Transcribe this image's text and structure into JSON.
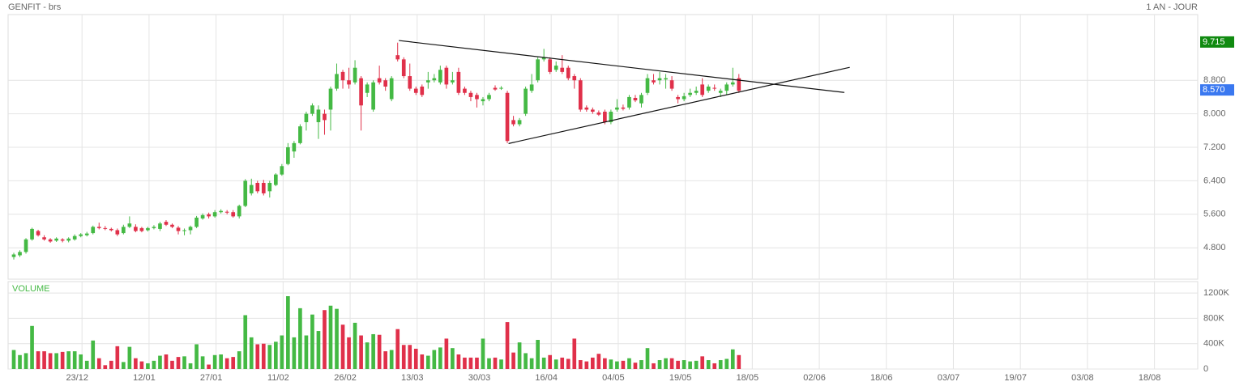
{
  "chart_data": {
    "type": "candlestick",
    "title": "GENFIT - brs",
    "period": "1 AN - JOUR",
    "up_color": "#44b944",
    "down_color": "#e0304a",
    "x": [
      0,
      1,
      2,
      3,
      4,
      5,
      6,
      7,
      8,
      9,
      10,
      11,
      12,
      13,
      14,
      15,
      16,
      17,
      18,
      19,
      20,
      21,
      22,
      23,
      24,
      25,
      26,
      27,
      28,
      29,
      30,
      31,
      32,
      33,
      34,
      35,
      36,
      37,
      38,
      39,
      40,
      41,
      42,
      43,
      44,
      45,
      46,
      47,
      48,
      49,
      50,
      51,
      52,
      53,
      54,
      55,
      56,
      57,
      58,
      59,
      60,
      61,
      62,
      63,
      64,
      65,
      66,
      67,
      68,
      69,
      70,
      71,
      72,
      73,
      74,
      75,
      76,
      77,
      78,
      79,
      80,
      81,
      82,
      83,
      84,
      85,
      86,
      87,
      88,
      89,
      90,
      91,
      92,
      93,
      94,
      95,
      96,
      97,
      98,
      99,
      100,
      101,
      102,
      103,
      104,
      105,
      106,
      107,
      108,
      109,
      110,
      111,
      112,
      113,
      114,
      115,
      116,
      117,
      118,
      119
    ],
    "open": [
      4.58,
      4.62,
      4.7,
      5.0,
      5.2,
      5.05,
      5.0,
      4.97,
      5.0,
      4.97,
      5.0,
      5.08,
      5.1,
      5.15,
      5.3,
      5.27,
      5.25,
      5.22,
      5.15,
      5.3,
      5.3,
      5.27,
      5.22,
      5.27,
      5.25,
      5.42,
      5.35,
      5.28,
      5.2,
      5.22,
      5.3,
      5.5,
      5.6,
      5.55,
      5.65,
      5.66,
      5.65,
      5.55,
      5.8,
      6.1,
      6.35,
      6.35,
      6.15,
      6.3,
      6.55,
      6.8,
      7.1,
      7.3,
      7.8,
      8.0,
      7.8,
      8.0,
      8.1,
      8.6,
      9.0,
      8.8,
      8.75,
      8.85,
      8.5,
      8.1,
      8.85,
      8.8,
      8.35,
      9.4,
      9.3,
      8.9,
      8.6,
      8.65,
      8.75,
      8.8,
      8.75,
      9.1,
      8.75,
      9.0,
      8.6,
      8.5,
      8.45,
      8.3,
      8.35,
      8.62,
      8.6,
      8.5,
      7.85,
      7.75,
      8.0,
      8.55,
      8.8,
      9.3,
      9.3,
      9.05,
      9.1,
      9.1,
      8.9,
      8.8,
      8.15,
      8.1,
      8.03,
      8.05,
      7.8,
      8.1,
      8.15,
      8.15,
      8.38,
      8.25,
      8.5,
      8.8,
      8.8,
      8.82,
      8.8,
      8.4,
      8.35,
      8.45,
      8.5,
      8.7,
      8.55,
      8.62,
      8.5,
      8.55,
      8.7,
      8.85
    ],
    "high": [
      4.68,
      4.74,
      5.03,
      5.28,
      5.23,
      5.1,
      5.03,
      5.05,
      5.03,
      5.05,
      5.12,
      5.15,
      5.18,
      5.33,
      5.4,
      5.32,
      5.28,
      5.26,
      5.35,
      5.55,
      5.36,
      5.3,
      5.3,
      5.34,
      5.42,
      5.46,
      5.38,
      5.32,
      5.26,
      5.33,
      5.56,
      5.62,
      5.64,
      5.7,
      5.72,
      5.7,
      5.7,
      5.83,
      6.44,
      6.45,
      6.4,
      6.42,
      6.4,
      6.58,
      6.8,
      7.3,
      7.35,
      7.75,
      8.05,
      8.25,
      8.2,
      8.1,
      8.65,
      9.2,
      9.05,
      9.1,
      9.28,
      8.9,
      8.75,
      8.8,
      9.15,
      8.85,
      8.9,
      9.7,
      9.35,
      9.2,
      8.65,
      8.7,
      9.0,
      8.95,
      9.15,
      9.15,
      9.0,
      9.1,
      8.65,
      8.55,
      8.5,
      8.4,
      8.5,
      8.68,
      8.66,
      8.55,
      7.95,
      7.9,
      8.65,
      8.95,
      9.35,
      9.55,
      9.35,
      9.25,
      9.4,
      9.15,
      8.95,
      8.85,
      8.2,
      8.15,
      8.08,
      8.1,
      8.1,
      8.35,
      8.22,
      8.45,
      8.45,
      8.5,
      8.95,
      8.95,
      9.0,
      8.95,
      8.9,
      8.45,
      8.5,
      8.6,
      8.65,
      8.85,
      8.7,
      8.7,
      8.6,
      8.75,
      9.1,
      8.95
    ],
    "low": [
      4.52,
      4.58,
      4.66,
      4.97,
      5.07,
      4.97,
      4.92,
      4.94,
      4.93,
      4.93,
      4.97,
      5.05,
      5.07,
      5.12,
      5.24,
      5.22,
      5.19,
      5.08,
      5.12,
      5.27,
      5.17,
      5.17,
      5.19,
      5.24,
      5.2,
      5.32,
      5.27,
      5.12,
      5.1,
      5.12,
      5.27,
      5.47,
      5.5,
      5.52,
      5.62,
      5.6,
      5.52,
      5.5,
      5.77,
      6.05,
      6.1,
      6.05,
      6.0,
      6.27,
      6.52,
      6.77,
      6.95,
      7.27,
      7.6,
      7.95,
      7.4,
      7.5,
      7.6,
      8.55,
      8.6,
      8.6,
      8.7,
      7.6,
      8.4,
      8.05,
      8.7,
      8.55,
      8.3,
      9.25,
      8.85,
      8.55,
      8.45,
      8.4,
      8.6,
      8.75,
      8.7,
      8.6,
      8.7,
      8.45,
      8.45,
      8.3,
      8.15,
      8.2,
      8.3,
      8.55,
      8.57,
      7.3,
      7.7,
      7.7,
      7.95,
      8.5,
      8.75,
      9.25,
      8.95,
      9.0,
      8.95,
      8.8,
      8.6,
      8.05,
      8.05,
      8.0,
      7.95,
      7.75,
      7.75,
      8.05,
      8.08,
      8.1,
      8.28,
      8.15,
      8.45,
      8.7,
      8.7,
      8.6,
      8.55,
      8.25,
      8.3,
      8.4,
      8.45,
      8.4,
      8.5,
      8.55,
      8.4,
      8.45,
      8.65,
      8.5
    ],
    "close": [
      4.64,
      4.7,
      5.0,
      5.25,
      5.1,
      5.0,
      4.95,
      5.02,
      4.97,
      5.02,
      5.08,
      5.12,
      5.14,
      5.3,
      5.27,
      5.25,
      5.22,
      5.12,
      5.3,
      5.38,
      5.2,
      5.2,
      5.27,
      5.3,
      5.38,
      5.35,
      5.3,
      5.2,
      5.22,
      5.3,
      5.52,
      5.58,
      5.55,
      5.65,
      5.68,
      5.64,
      5.55,
      5.8,
      6.4,
      6.3,
      6.15,
      6.1,
      6.35,
      6.55,
      6.75,
      7.2,
      7.3,
      7.7,
      8.0,
      8.2,
      8.1,
      7.85,
      8.6,
      8.95,
      8.8,
      8.7,
      9.1,
      8.2,
      8.7,
      8.75,
      8.75,
      8.65,
      8.85,
      9.3,
      8.9,
      8.6,
      8.5,
      8.45,
      8.8,
      8.85,
      9.05,
      8.7,
      8.8,
      8.5,
      8.5,
      8.4,
      8.35,
      8.35,
      8.45,
      8.58,
      8.62,
      7.35,
      7.75,
      7.85,
      8.6,
      8.7,
      9.3,
      9.35,
      9.0,
      9.15,
      9.0,
      8.85,
      8.8,
      8.1,
      8.1,
      8.05,
      7.98,
      7.8,
      8.05,
      8.15,
      8.12,
      8.4,
      8.32,
      8.45,
      8.85,
      8.75,
      8.85,
      8.85,
      8.6,
      8.35,
      8.42,
      8.5,
      8.55,
      8.45,
      8.65,
      8.6,
      8.55,
      8.7,
      8.75,
      8.55
    ],
    "xlim": [
      -0.93,
      194.3
    ],
    "xticks": [
      {
        "value": 11.2,
        "label": "23/12"
      },
      {
        "value": 22.2,
        "label": "12/01"
      },
      {
        "value": 33.2,
        "label": "27/01"
      },
      {
        "value": 44.2,
        "label": "11/02"
      },
      {
        "value": 55.2,
        "label": "26/02"
      },
      {
        "value": 66.2,
        "label": "13/03"
      },
      {
        "value": 77.2,
        "label": "30/03"
      },
      {
        "value": 88.2,
        "label": "16/04"
      },
      {
        "value": 99.2,
        "label": "04/05"
      },
      {
        "value": 110.2,
        "label": "19/05"
      },
      {
        "value": 121.2,
        "label": "18/05"
      },
      {
        "value": 132.2,
        "label": "02/06"
      },
      {
        "value": 143.2,
        "label": "18/06"
      },
      {
        "value": 154.2,
        "label": "03/07"
      },
      {
        "value": 165.2,
        "label": "19/07"
      },
      {
        "value": 176.2,
        "label": "03/08"
      },
      {
        "value": 187.2,
        "label": "18/08"
      }
    ],
    "ylim": [
      4.05,
      10.37
    ],
    "yticks": [
      {
        "value": 4.8,
        "label": "4.800"
      },
      {
        "value": 5.6,
        "label": "5.600"
      },
      {
        "value": 6.4,
        "label": "6.400"
      },
      {
        "value": 7.2,
        "label": "7.200"
      },
      {
        "value": 8.0,
        "label": "8.000"
      },
      {
        "value": 8.8,
        "label": "8.800"
      }
    ],
    "grid": true,
    "trendlines": [
      {
        "x": [
          63.2,
          136.3
        ],
        "y": [
          9.75,
          8.51
        ]
      },
      {
        "x": [
          81.2,
          137.2
        ],
        "y": [
          7.29,
          9.11
        ]
      }
    ],
    "price_labels": [
      {
        "value": 9.715,
        "color": "#108a10"
      },
      {
        "value": 8.57,
        "label": "8.570",
        "color": "#3a78f0"
      }
    ],
    "volume": {
      "title": "VOLUME",
      "values": [
        300000,
        220000,
        250000,
        680000,
        280000,
        280000,
        250000,
        250000,
        270000,
        280000,
        280000,
        230000,
        130000,
        450000,
        170000,
        60000,
        130000,
        360000,
        110000,
        350000,
        170000,
        120000,
        90000,
        130000,
        210000,
        230000,
        130000,
        190000,
        200000,
        90000,
        390000,
        200000,
        70000,
        220000,
        230000,
        170000,
        190000,
        280000,
        850000,
        500000,
        390000,
        400000,
        380000,
        430000,
        530000,
        1150000,
        500000,
        960000,
        530000,
        860000,
        600000,
        930000,
        1000000,
        950000,
        700000,
        500000,
        730000,
        530000,
        420000,
        550000,
        540000,
        280000,
        300000,
        630000,
        380000,
        380000,
        320000,
        230000,
        210000,
        300000,
        340000,
        480000,
        330000,
        230000,
        180000,
        180000,
        180000,
        480000,
        170000,
        180000,
        150000,
        740000,
        260000,
        420000,
        250000,
        170000,
        460000,
        180000,
        220000,
        150000,
        180000,
        160000,
        480000,
        140000,
        120000,
        180000,
        240000,
        170000,
        150000,
        120000,
        130000,
        170000,
        100000,
        140000,
        330000,
        90000,
        140000,
        170000,
        170000,
        130000,
        140000,
        120000,
        130000,
        200000,
        140000,
        90000,
        140000,
        160000,
        310000,
        220000
      ],
      "ylim": [
        0,
        1380000
      ],
      "yticks": [
        0,
        {
          "value": 400000,
          "label": "400K"
        },
        {
          "value": 800000,
          "label": "800K"
        },
        {
          "value": 1200000,
          "label": "1200K"
        }
      ]
    }
  }
}
